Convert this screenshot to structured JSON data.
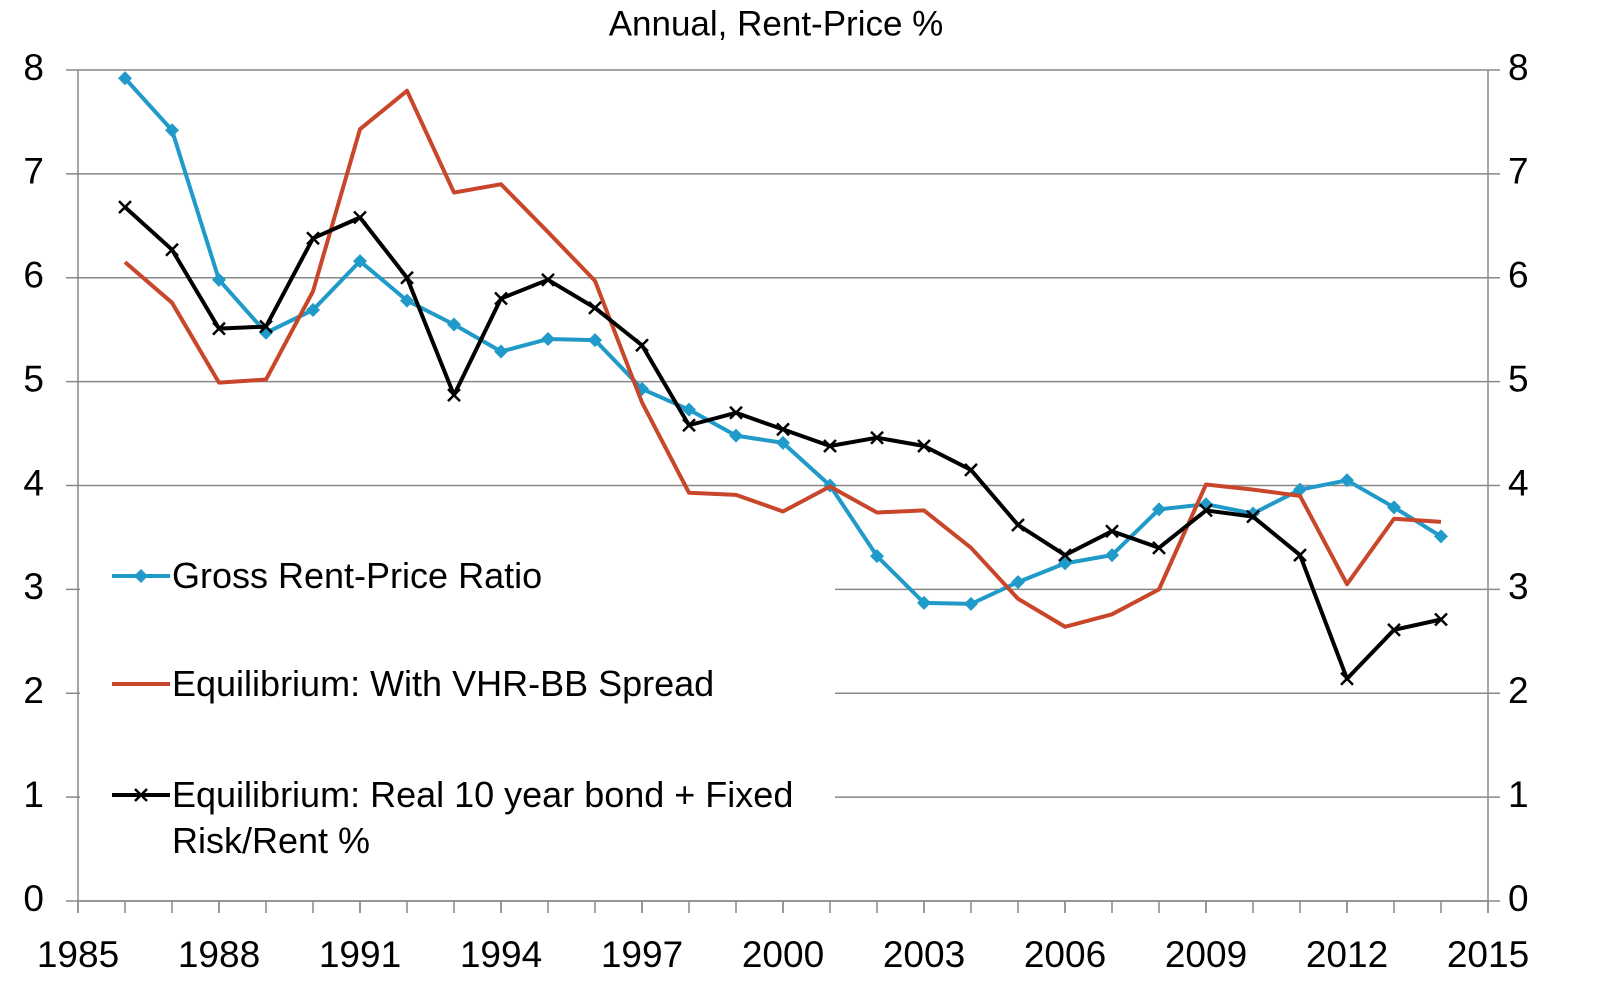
{
  "chart_data": {
    "type": "line",
    "title": "Annual, Rent-Price %",
    "x": [
      1986,
      1987,
      1988,
      1989,
      1990,
      1991,
      1992,
      1993,
      1994,
      1995,
      1996,
      1997,
      1998,
      1999,
      2000,
      2001,
      2002,
      2003,
      2004,
      2005,
      2006,
      2007,
      2008,
      2009,
      2010,
      2011,
      2012,
      2013,
      2014
    ],
    "series": [
      {
        "name": "Gross Rent-Price Ratio",
        "color": "#1f9ac9",
        "marker": "diamond",
        "values": [
          7.92,
          7.42,
          5.98,
          5.47,
          5.69,
          6.16,
          5.78,
          5.55,
          5.29,
          5.41,
          5.4,
          4.93,
          4.73,
          4.48,
          4.41,
          4.0,
          3.32,
          2.87,
          2.86,
          3.07,
          3.25,
          3.33,
          3.77,
          3.82,
          3.73,
          3.96,
          4.05,
          3.79,
          3.51
        ]
      },
      {
        "name": "Equilibrium: With VHR-BB Spread",
        "color": "#c8462a",
        "marker": "none",
        "values": [
          6.15,
          5.76,
          4.99,
          5.02,
          5.87,
          7.43,
          7.8,
          6.82,
          6.9,
          6.44,
          5.97,
          4.8,
          3.93,
          3.91,
          3.75,
          3.99,
          3.74,
          3.76,
          3.4,
          2.91,
          2.64,
          2.76,
          3.0,
          4.01,
          3.96,
          3.9,
          3.05,
          3.68,
          3.65
        ]
      },
      {
        "name": "Equilibrium: Real 10 year bond + Fixed Risk/Rent %",
        "color": "#000000",
        "marker": "x",
        "values": [
          6.68,
          6.27,
          5.51,
          5.53,
          6.38,
          6.58,
          6.0,
          4.87,
          5.8,
          5.98,
          5.71,
          5.35,
          4.58,
          4.7,
          4.54,
          4.38,
          4.46,
          4.38,
          4.15,
          3.62,
          3.33,
          3.56,
          3.4,
          3.76,
          3.7,
          3.33,
          2.14,
          2.61,
          2.71
        ]
      }
    ],
    "xlim": [
      1985,
      2015
    ],
    "xticks": [
      1985,
      1988,
      1991,
      1994,
      1997,
      2000,
      2003,
      2006,
      2009,
      2012,
      2015
    ],
    "ylim": [
      0,
      8
    ],
    "yticks": [
      0,
      1,
      2,
      3,
      4,
      5,
      6,
      7,
      8
    ],
    "y2lim": [
      0,
      8
    ],
    "y2ticks": [
      0,
      1,
      2,
      3,
      4,
      5,
      6,
      7,
      8
    ],
    "grid": true,
    "legend": "lower left"
  }
}
